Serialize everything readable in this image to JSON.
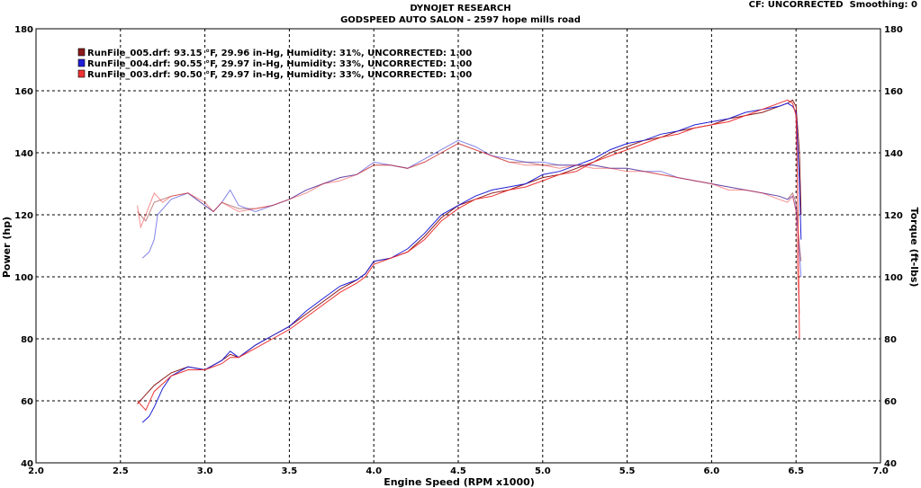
{
  "header": {
    "title": "DYNOJET RESEARCH",
    "subtitle": "GODSPEED AUTO SALON - 2597 hope mills road",
    "cf_label": "CF: UNCORRECTED",
    "smoothing_label": "Smoothing: 0"
  },
  "colors": {
    "run_005": "#8b1a1a",
    "run_004": "#1f1fd6",
    "run_003": "#ee3333",
    "grid": "#000000",
    "background": "#ffffff"
  },
  "chart_data": {
    "type": "line",
    "xlabel": "Engine Speed (RPM x1000)",
    "ylabel_left": "Power (hp)",
    "ylabel_right": "Torque (ft-lbs)",
    "xlim": [
      2.0,
      7.0
    ],
    "ylim_left": [
      40,
      180
    ],
    "ylim_right": [
      40,
      180
    ],
    "xticks": [
      "2.0",
      "2.5",
      "3.0",
      "3.5",
      "4.0",
      "4.5",
      "5.0",
      "5.5",
      "6.0",
      "6.5",
      "7.0"
    ],
    "yticks": [
      "40",
      "60",
      "80",
      "100",
      "120",
      "140",
      "160",
      "180"
    ],
    "grid": true,
    "legend_placement": "top-left",
    "series": [
      {
        "name": "RunFile_005.drf: 93.15 °F, 29.96 in-Hg, Humidity: 31%, UNCORRECTED: 1.00",
        "color_key": "run_005",
        "power": [
          [
            2.6,
            59
          ],
          [
            2.65,
            62
          ],
          [
            2.7,
            65
          ],
          [
            2.8,
            69
          ],
          [
            2.9,
            71
          ],
          [
            3.0,
            70
          ],
          [
            3.1,
            73
          ],
          [
            3.15,
            75
          ],
          [
            3.2,
            74
          ],
          [
            3.3,
            78
          ],
          [
            3.4,
            81
          ],
          [
            3.5,
            84
          ],
          [
            3.6,
            88
          ],
          [
            3.7,
            92
          ],
          [
            3.8,
            96
          ],
          [
            3.9,
            99
          ],
          [
            3.95,
            101
          ],
          [
            4.0,
            105
          ],
          [
            4.1,
            106
          ],
          [
            4.2,
            108
          ],
          [
            4.3,
            113
          ],
          [
            4.4,
            119
          ],
          [
            4.5,
            123
          ],
          [
            4.6,
            125
          ],
          [
            4.7,
            127
          ],
          [
            4.8,
            128
          ],
          [
            4.9,
            130
          ],
          [
            5.0,
            132
          ],
          [
            5.1,
            133
          ],
          [
            5.2,
            135
          ],
          [
            5.3,
            137
          ],
          [
            5.4,
            140
          ],
          [
            5.5,
            142
          ],
          [
            5.6,
            144
          ],
          [
            5.7,
            145
          ],
          [
            5.8,
            147
          ],
          [
            5.9,
            148
          ],
          [
            6.0,
            149
          ],
          [
            6.1,
            151
          ],
          [
            6.2,
            152
          ],
          [
            6.3,
            153
          ],
          [
            6.4,
            155
          ],
          [
            6.45,
            156
          ],
          [
            6.48,
            157
          ],
          [
            6.5,
            155
          ],
          [
            6.52,
            140
          ],
          [
            6.53,
            120
          ]
        ],
        "torque": [
          [
            2.6,
            121
          ],
          [
            2.65,
            118
          ],
          [
            2.7,
            124
          ],
          [
            2.8,
            126
          ],
          [
            2.9,
            127
          ],
          [
            3.0,
            123
          ],
          [
            3.05,
            121
          ],
          [
            3.1,
            124
          ],
          [
            3.2,
            122
          ],
          [
            3.3,
            122
          ],
          [
            3.4,
            123
          ],
          [
            3.5,
            125
          ],
          [
            3.6,
            128
          ],
          [
            3.7,
            130
          ],
          [
            3.8,
            132
          ],
          [
            3.9,
            133
          ],
          [
            4.0,
            136
          ],
          [
            4.1,
            136
          ],
          [
            4.2,
            135
          ],
          [
            4.3,
            137
          ],
          [
            4.4,
            140
          ],
          [
            4.5,
            143
          ],
          [
            4.6,
            141
          ],
          [
            4.7,
            139
          ],
          [
            4.8,
            137
          ],
          [
            4.9,
            137
          ],
          [
            5.0,
            136
          ],
          [
            5.1,
            136
          ],
          [
            5.2,
            136
          ],
          [
            5.3,
            136
          ],
          [
            5.4,
            135
          ],
          [
            5.5,
            135
          ],
          [
            5.6,
            134
          ],
          [
            5.7,
            133
          ],
          [
            5.8,
            132
          ],
          [
            5.9,
            131
          ],
          [
            6.0,
            130
          ],
          [
            6.1,
            129
          ],
          [
            6.2,
            128
          ],
          [
            6.3,
            127
          ],
          [
            6.4,
            126
          ],
          [
            6.45,
            125
          ],
          [
            6.48,
            127
          ],
          [
            6.5,
            124
          ],
          [
            6.52,
            110
          ],
          [
            6.53,
            105
          ]
        ]
      },
      {
        "name": "RunFile_004.drf: 90.55 °F, 29.97 in-Hg, Humidity: 33%, UNCORRECTED: 1.00",
        "color_key": "run_004",
        "power": [
          [
            2.63,
            53
          ],
          [
            2.67,
            55
          ],
          [
            2.7,
            58
          ],
          [
            2.75,
            64
          ],
          [
            2.8,
            68
          ],
          [
            2.9,
            71
          ],
          [
            3.0,
            70
          ],
          [
            3.1,
            73
          ],
          [
            3.15,
            76
          ],
          [
            3.2,
            74
          ],
          [
            3.3,
            78
          ],
          [
            3.4,
            81
          ],
          [
            3.5,
            84
          ],
          [
            3.6,
            89
          ],
          [
            3.7,
            93
          ],
          [
            3.8,
            97
          ],
          [
            3.9,
            99
          ],
          [
            3.95,
            101
          ],
          [
            4.0,
            105
          ],
          [
            4.1,
            106
          ],
          [
            4.2,
            109
          ],
          [
            4.3,
            114
          ],
          [
            4.4,
            120
          ],
          [
            4.5,
            123
          ],
          [
            4.6,
            126
          ],
          [
            4.7,
            128
          ],
          [
            4.8,
            129
          ],
          [
            4.9,
            130
          ],
          [
            5.0,
            133
          ],
          [
            5.1,
            134
          ],
          [
            5.2,
            136
          ],
          [
            5.3,
            138
          ],
          [
            5.4,
            141
          ],
          [
            5.5,
            143
          ],
          [
            5.6,
            144
          ],
          [
            5.7,
            146
          ],
          [
            5.8,
            147
          ],
          [
            5.9,
            149
          ],
          [
            6.0,
            150
          ],
          [
            6.1,
            151
          ],
          [
            6.2,
            153
          ],
          [
            6.3,
            154
          ],
          [
            6.4,
            155
          ],
          [
            6.45,
            156
          ],
          [
            6.48,
            155
          ],
          [
            6.5,
            153
          ],
          [
            6.52,
            130
          ],
          [
            6.53,
            112
          ]
        ],
        "torque": [
          [
            2.63,
            106
          ],
          [
            2.67,
            108
          ],
          [
            2.7,
            112
          ],
          [
            2.72,
            120
          ],
          [
            2.8,
            125
          ],
          [
            2.9,
            127
          ],
          [
            3.0,
            123
          ],
          [
            3.05,
            121
          ],
          [
            3.1,
            124
          ],
          [
            3.15,
            128
          ],
          [
            3.2,
            123
          ],
          [
            3.3,
            121
          ],
          [
            3.4,
            123
          ],
          [
            3.5,
            125
          ],
          [
            3.6,
            128
          ],
          [
            3.7,
            130
          ],
          [
            3.8,
            132
          ],
          [
            3.9,
            133
          ],
          [
            4.0,
            137
          ],
          [
            4.1,
            136
          ],
          [
            4.2,
            135
          ],
          [
            4.3,
            138
          ],
          [
            4.4,
            141
          ],
          [
            4.5,
            144
          ],
          [
            4.6,
            142
          ],
          [
            4.7,
            139
          ],
          [
            4.8,
            138
          ],
          [
            4.9,
            137
          ],
          [
            5.0,
            137
          ],
          [
            5.1,
            136
          ],
          [
            5.2,
            136
          ],
          [
            5.3,
            136
          ],
          [
            5.4,
            135
          ],
          [
            5.5,
            135
          ],
          [
            5.6,
            134
          ],
          [
            5.7,
            134
          ],
          [
            5.8,
            132
          ],
          [
            5.9,
            131
          ],
          [
            6.0,
            130
          ],
          [
            6.1,
            129
          ],
          [
            6.2,
            128
          ],
          [
            6.3,
            127
          ],
          [
            6.4,
            126
          ],
          [
            6.45,
            125
          ],
          [
            6.48,
            126
          ],
          [
            6.5,
            122
          ],
          [
            6.52,
            108
          ],
          [
            6.53,
            100
          ]
        ]
      },
      {
        "name": "RunFile_003.drf: 90.50 °F, 29.97 in-Hg, Humidity: 33%, UNCORRECTED: 1.00",
        "color_key": "run_003",
        "power": [
          [
            2.6,
            60
          ],
          [
            2.65,
            57
          ],
          [
            2.7,
            63
          ],
          [
            2.8,
            68
          ],
          [
            2.9,
            70
          ],
          [
            3.0,
            70
          ],
          [
            3.1,
            72
          ],
          [
            3.15,
            74
          ],
          [
            3.2,
            74
          ],
          [
            3.3,
            77
          ],
          [
            3.4,
            80
          ],
          [
            3.5,
            83
          ],
          [
            3.6,
            87
          ],
          [
            3.7,
            91
          ],
          [
            3.8,
            95
          ],
          [
            3.9,
            98
          ],
          [
            3.95,
            100
          ],
          [
            4.0,
            104
          ],
          [
            4.1,
            106
          ],
          [
            4.2,
            108
          ],
          [
            4.3,
            112
          ],
          [
            4.4,
            118
          ],
          [
            4.5,
            122
          ],
          [
            4.6,
            125
          ],
          [
            4.7,
            126
          ],
          [
            4.8,
            128
          ],
          [
            4.9,
            129
          ],
          [
            5.0,
            131
          ],
          [
            5.1,
            133
          ],
          [
            5.2,
            134
          ],
          [
            5.3,
            137
          ],
          [
            5.4,
            139
          ],
          [
            5.5,
            141
          ],
          [
            5.6,
            143
          ],
          [
            5.7,
            145
          ],
          [
            5.8,
            146
          ],
          [
            5.9,
            148
          ],
          [
            6.0,
            149
          ],
          [
            6.1,
            150
          ],
          [
            6.2,
            152
          ],
          [
            6.3,
            154
          ],
          [
            6.4,
            156
          ],
          [
            6.45,
            157
          ],
          [
            6.48,
            156
          ],
          [
            6.5,
            152
          ],
          [
            6.51,
            125
          ],
          [
            6.52,
            80
          ]
        ],
        "torque": [
          [
            2.6,
            123
          ],
          [
            2.62,
            116
          ],
          [
            2.65,
            120
          ],
          [
            2.7,
            127
          ],
          [
            2.75,
            124
          ],
          [
            2.8,
            126
          ],
          [
            2.9,
            127
          ],
          [
            3.0,
            124
          ],
          [
            3.05,
            121
          ],
          [
            3.1,
            124
          ],
          [
            3.2,
            121
          ],
          [
            3.3,
            122
          ],
          [
            3.4,
            123
          ],
          [
            3.5,
            125
          ],
          [
            3.6,
            127
          ],
          [
            3.7,
            130
          ],
          [
            3.8,
            131
          ],
          [
            3.9,
            133
          ],
          [
            4.0,
            136
          ],
          [
            4.1,
            136
          ],
          [
            4.2,
            135
          ],
          [
            4.3,
            137
          ],
          [
            4.4,
            140
          ],
          [
            4.5,
            143
          ],
          [
            4.6,
            141
          ],
          [
            4.7,
            139
          ],
          [
            4.8,
            137
          ],
          [
            4.9,
            136
          ],
          [
            5.0,
            136
          ],
          [
            5.1,
            135
          ],
          [
            5.2,
            136
          ],
          [
            5.3,
            135
          ],
          [
            5.4,
            135
          ],
          [
            5.5,
            134
          ],
          [
            5.6,
            134
          ],
          [
            5.7,
            133
          ],
          [
            5.8,
            132
          ],
          [
            5.9,
            131
          ],
          [
            6.0,
            130
          ],
          [
            6.1,
            128
          ],
          [
            6.2,
            128
          ],
          [
            6.3,
            127
          ],
          [
            6.4,
            125
          ],
          [
            6.45,
            124
          ],
          [
            6.48,
            126
          ],
          [
            6.5,
            121
          ],
          [
            6.51,
            100
          ],
          [
            6.52,
            88
          ]
        ]
      }
    ]
  }
}
